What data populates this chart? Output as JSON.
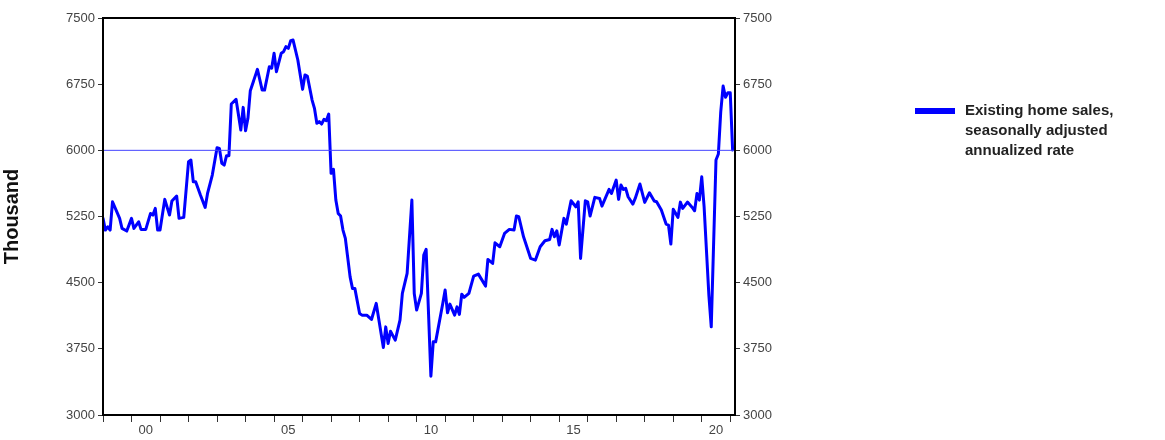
{
  "chart_data": {
    "type": "line",
    "ylabel": "Thousand",
    "legend": "right",
    "grid": false,
    "xlim": [
      "1999-01",
      "2021-03"
    ],
    "xticks": [
      {
        "value": "1999-01",
        "label": null
      },
      {
        "value": "2000-01",
        "label": null
      },
      {
        "value": "2000-07",
        "label": "00"
      },
      {
        "value": "2001-01",
        "label": null
      },
      {
        "value": "2002-01",
        "label": null
      },
      {
        "value": "2003-01",
        "label": null
      },
      {
        "value": "2004-01",
        "label": null
      },
      {
        "value": "2005-01",
        "label": null
      },
      {
        "value": "2005-07",
        "label": "05"
      },
      {
        "value": "2006-01",
        "label": null
      },
      {
        "value": "2007-01",
        "label": null
      },
      {
        "value": "2008-01",
        "label": null
      },
      {
        "value": "2009-01",
        "label": null
      },
      {
        "value": "2010-01",
        "label": null
      },
      {
        "value": "2010-07",
        "label": "10"
      },
      {
        "value": "2011-01",
        "label": null
      },
      {
        "value": "2012-01",
        "label": null
      },
      {
        "value": "2013-01",
        "label": null
      },
      {
        "value": "2014-01",
        "label": null
      },
      {
        "value": "2015-01",
        "label": null
      },
      {
        "value": "2015-07",
        "label": "15"
      },
      {
        "value": "2016-01",
        "label": null
      },
      {
        "value": "2017-01",
        "label": null
      },
      {
        "value": "2018-01",
        "label": null
      },
      {
        "value": "2019-01",
        "label": null
      },
      {
        "value": "2020-01",
        "label": null
      },
      {
        "value": "2020-07",
        "label": "20"
      },
      {
        "value": "2021-01",
        "label": null
      }
    ],
    "ylim": [
      3000,
      7500
    ],
    "yticks": [
      3000,
      3750,
      4500,
      5250,
      6000,
      6750,
      7500
    ],
    "y2lim": [
      3000,
      7500
    ],
    "y2ticks": [
      3000,
      3750,
      4500,
      5250,
      6000,
      6750,
      7500
    ],
    "ref_lines": [
      {
        "axis": "y",
        "value": 6000,
        "color": "#4444ff"
      }
    ],
    "series": [
      {
        "name": "Existing home sales, seasonally adjusted annualized rate",
        "color": "#0000ff",
        "line_style": "solid",
        "marker": "none",
        "x": [
          "1999-01",
          "1999-02",
          "1999-03",
          "1999-04",
          "1999-05",
          "1999-08",
          "1999-09",
          "1999-11",
          "2000-01",
          "2000-02",
          "2000-04",
          "2000-05",
          "2000-07",
          "2000-09",
          "2000-10",
          "2000-11",
          "2000-12",
          "2001-01",
          "2001-03",
          "2001-05",
          "2001-06",
          "2001-08",
          "2001-09",
          "2001-11",
          "2002-01",
          "2002-02",
          "2002-03",
          "2002-04",
          "2002-06",
          "2002-08",
          "2002-09",
          "2002-11",
          "2003-01",
          "2003-02",
          "2003-03",
          "2003-04",
          "2003-05",
          "2003-06",
          "2003-07",
          "2003-09",
          "2003-11",
          "2003-12",
          "2004-01",
          "2004-02",
          "2004-03",
          "2004-06",
          "2004-08",
          "2004-09",
          "2004-11",
          "2004-12",
          "2005-01",
          "2005-02",
          "2005-04",
          "2005-05",
          "2005-06",
          "2005-07",
          "2005-08",
          "2005-09",
          "2005-11",
          "2006-01",
          "2006-02",
          "2006-03",
          "2006-05",
          "2006-06",
          "2006-07",
          "2006-08",
          "2006-09",
          "2006-10",
          "2006-11",
          "2006-12",
          "2007-01",
          "2007-02",
          "2007-03",
          "2007-04",
          "2007-05",
          "2007-06",
          "2007-07",
          "2007-09",
          "2007-10",
          "2007-11",
          "2008-01",
          "2008-02",
          "2008-04",
          "2008-06",
          "2008-08",
          "2008-11",
          "2008-12",
          "2009-01",
          "2009-02",
          "2009-04",
          "2009-06",
          "2009-07",
          "2009-09",
          "2009-11",
          "2009-12",
          "2010-01",
          "2010-03",
          "2010-04",
          "2010-05",
          "2010-07",
          "2010-08",
          "2010-09",
          "2010-12",
          "2011-01",
          "2011-02",
          "2011-03",
          "2011-05",
          "2011-06",
          "2011-07",
          "2011-08",
          "2011-09",
          "2011-11",
          "2012-01",
          "2012-03",
          "2012-06",
          "2012-07",
          "2012-09",
          "2012-10",
          "2012-12",
          "2013-02",
          "2013-04",
          "2013-06",
          "2013-07",
          "2013-08",
          "2013-10",
          "2014-01",
          "2014-03",
          "2014-05",
          "2014-07",
          "2014-09",
          "2014-10",
          "2014-11",
          "2014-12",
          "2015-01",
          "2015-03",
          "2015-04",
          "2015-06",
          "2015-08",
          "2015-09",
          "2015-10",
          "2015-12",
          "2016-01",
          "2016-02",
          "2016-04",
          "2016-06",
          "2016-07",
          "2016-10",
          "2016-11",
          "2017-01",
          "2017-02",
          "2017-03",
          "2017-04",
          "2017-05",
          "2017-06",
          "2017-08",
          "2017-09",
          "2017-11",
          "2018-01",
          "2018-03",
          "2018-05",
          "2018-06",
          "2018-08",
          "2018-10",
          "2018-11",
          "2018-12",
          "2019-01",
          "2019-03",
          "2019-04",
          "2019-05",
          "2019-07",
          "2019-09",
          "2019-10",
          "2019-11",
          "2019-12",
          "2020-01",
          "2020-02",
          "2020-04",
          "2020-05",
          "2020-07",
          "2020-08",
          "2020-09",
          "2020-10",
          "2020-11",
          "2020-12",
          "2021-01",
          "2021-02"
        ],
        "values": [
          5229,
          5096,
          5133,
          5096,
          5417,
          5229,
          5115,
          5085,
          5229,
          5115,
          5190,
          5104,
          5104,
          5285,
          5266,
          5342,
          5096,
          5096,
          5444,
          5266,
          5425,
          5482,
          5229,
          5240,
          5871,
          5890,
          5644,
          5644,
          5493,
          5353,
          5512,
          5720,
          6029,
          6022,
          5852,
          5833,
          5939,
          5939,
          6525,
          6578,
          6230,
          6487,
          6222,
          6363,
          6676,
          6918,
          6683,
          6683,
          6948,
          6930,
          7100,
          6891,
          7100,
          7118,
          7175,
          7156,
          7243,
          7250,
          7024,
          6691,
          6854,
          6842,
          6570,
          6476,
          6306,
          6325,
          6298,
          6351,
          6335,
          6411,
          5739,
          5784,
          5436,
          5285,
          5255,
          5096,
          5002,
          4566,
          4435,
          4435,
          4151,
          4132,
          4132,
          4083,
          4265,
          3766,
          3999,
          3811,
          3950,
          3849,
          4075,
          4378,
          4605,
          5436,
          4378,
          4189,
          4378,
          4812,
          4877,
          3440,
          3829,
          3829,
          4265,
          4416,
          4158,
          4257,
          4132,
          4226,
          4140,
          4370,
          4333,
          4378,
          4574,
          4597,
          4461,
          4763,
          4718,
          4952,
          4907,
          5058,
          5104,
          5096,
          5255,
          5247,
          5020,
          4775,
          4756,
          4907,
          4975,
          4990,
          5104,
          5020,
          5088,
          4926,
          5229,
          5164,
          5428,
          5360,
          5417,
          4775,
          5428,
          5417,
          5255,
          5467,
          5455,
          5368,
          5557,
          5512,
          5663,
          5444,
          5606,
          5557,
          5569,
          5474,
          5391,
          5455,
          5618,
          5410,
          5519,
          5425,
          5417,
          5323,
          5164,
          5153,
          4937,
          5331,
          5240,
          5413,
          5342,
          5413,
          5353,
          5315,
          5512,
          5436,
          5700,
          5360,
          4359,
          3999,
          5890,
          5958,
          6437,
          6729,
          6601,
          6653,
          6653,
          6003
        ]
      }
    ]
  }
}
